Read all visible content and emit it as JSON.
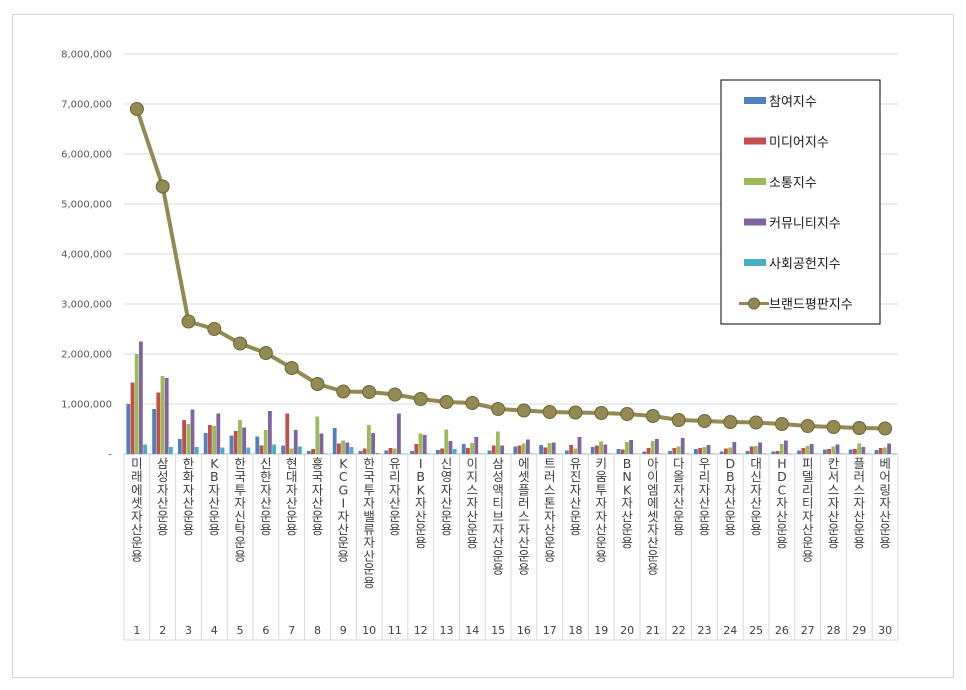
{
  "chart_data": {
    "type": "bar",
    "ylim": [
      0,
      8000000
    ],
    "yticks": [
      "-",
      "1,000,000",
      "2,000,000",
      "3,000,000",
      "4,000,000",
      "5,000,000",
      "6,000,000",
      "7,000,000",
      "8,000,000"
    ],
    "grid": true,
    "legend_position": "top-right",
    "ranks": [
      "1",
      "2",
      "3",
      "4",
      "5",
      "6",
      "7",
      "8",
      "9",
      "10",
      "11",
      "12",
      "13",
      "14",
      "15",
      "16",
      "17",
      "18",
      "19",
      "20",
      "21",
      "22",
      "23",
      "24",
      "25",
      "26",
      "27",
      "28",
      "29",
      "30"
    ],
    "categories": [
      "미래에셋자산운용",
      "삼성자산운용",
      "한화자산운용",
      "KB자산운용",
      "한국투자신탁운용",
      "신한자산운용",
      "현대자산운용",
      "흥국자산운용",
      "KCGI자산운용",
      "한국투자밸류자산운용",
      "유리자산운용",
      "IBK자산운용",
      "신영자산운용",
      "이지스자산운용",
      "삼성액티브자산운용",
      "에셋플러스자산운용",
      "트러스톤자산운용",
      "유진자산운용",
      "키움투자자산운용",
      "BNK자산운용",
      "아이엠에셋자산운용",
      "다올자산운용",
      "우리자산운용",
      "DB자산운용",
      "대신자산운용",
      "HDC자산운용",
      "피델리티자산운용",
      "칸서스자산운용",
      "플러스자산운용",
      "베어링자산운용"
    ],
    "series": [
      {
        "name": "참여지수",
        "type": "bar",
        "color": "#4f81bd",
        "values": [
          1000000,
          900000,
          300000,
          420000,
          370000,
          350000,
          170000,
          60000,
          520000,
          60000,
          70000,
          60000,
          80000,
          200000,
          70000,
          150000,
          180000,
          70000,
          140000,
          100000,
          50000,
          60000,
          100000,
          50000,
          60000,
          50000,
          70000,
          90000,
          90000,
          80000
        ]
      },
      {
        "name": "미디어지수",
        "type": "bar",
        "color": "#c0504d",
        "values": [
          1430000,
          1230000,
          680000,
          580000,
          460000,
          170000,
          810000,
          100000,
          210000,
          110000,
          120000,
          200000,
          110000,
          120000,
          170000,
          170000,
          130000,
          180000,
          170000,
          90000,
          120000,
          120000,
          120000,
          110000,
          150000,
          60000,
          120000,
          100000,
          100000,
          120000
        ]
      },
      {
        "name": "소통지수",
        "type": "bar",
        "color": "#9bbb59",
        "values": [
          2000000,
          1560000,
          600000,
          560000,
          680000,
          480000,
          110000,
          750000,
          270000,
          580000,
          110000,
          410000,
          490000,
          220000,
          450000,
          210000,
          220000,
          110000,
          250000,
          240000,
          260000,
          150000,
          140000,
          130000,
          160000,
          200000,
          160000,
          150000,
          210000,
          130000
        ]
      },
      {
        "name": "커뮤니티지수",
        "type": "bar",
        "color": "#8064a2",
        "values": [
          2250000,
          1520000,
          890000,
          810000,
          530000,
          860000,
          480000,
          410000,
          230000,
          420000,
          810000,
          380000,
          260000,
          340000,
          170000,
          290000,
          230000,
          340000,
          190000,
          280000,
          300000,
          320000,
          180000,
          240000,
          230000,
          270000,
          200000,
          190000,
          140000,
          210000
        ]
      },
      {
        "name": "사회공헌지수",
        "type": "bar",
        "color": "#4bacc6",
        "values": [
          190000,
          140000,
          140000,
          130000,
          130000,
          190000,
          150000,
          10000,
          140000,
          20000,
          10000,
          10000,
          100000,
          10000,
          10000,
          10000,
          10000,
          10000,
          10000,
          10000,
          10000,
          10000,
          10000,
          10000,
          10000,
          10000,
          10000,
          10000,
          10000,
          10000
        ]
      },
      {
        "name": "브랜드평판지수",
        "type": "line",
        "color": "#938953",
        "values": [
          6900000,
          5350000,
          2650000,
          2500000,
          2210000,
          2020000,
          1720000,
          1400000,
          1250000,
          1240000,
          1190000,
          1100000,
          1040000,
          1020000,
          900000,
          870000,
          840000,
          830000,
          820000,
          800000,
          760000,
          680000,
          660000,
          640000,
          630000,
          600000,
          560000,
          540000,
          520000,
          510000
        ]
      }
    ]
  }
}
